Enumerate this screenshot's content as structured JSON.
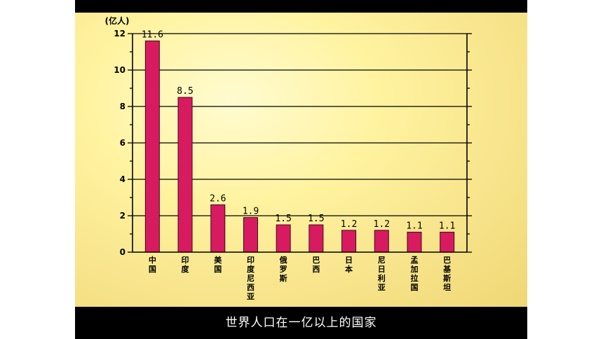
{
  "chart_data": {
    "type": "bar",
    "unit_label": "(亿人)",
    "categories": [
      "中国",
      "印度",
      "美国",
      "印度尼西亚",
      "俄罗斯",
      "巴西",
      "日本",
      "尼日利亚",
      "孟加拉国",
      "巴基斯坦"
    ],
    "values": [
      11.6,
      8.5,
      2.6,
      1.9,
      1.5,
      1.5,
      1.2,
      1.2,
      1.1,
      1.1
    ],
    "value_labels": [
      "11.6",
      "8.5",
      "2.6",
      "1.9",
      "1.5",
      "1.5",
      "1.2",
      "1.2",
      "1.1",
      "1.1"
    ],
    "y_ticks": [
      0,
      2,
      4,
      6,
      8,
      10,
      12
    ],
    "ylim": [
      0,
      12
    ],
    "grid": true,
    "bar_color": "#d81b60"
  },
  "caption": "世界人口在一亿以上的国家"
}
